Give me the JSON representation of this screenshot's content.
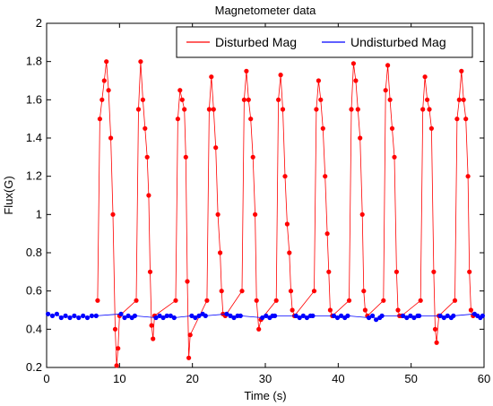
{
  "chart_data": {
    "type": "line",
    "title": "Magnetometer data",
    "xlabel": "Time (s)",
    "ylabel": "Flux(G)",
    "xlim": [
      0,
      60
    ],
    "ylim": [
      0.2,
      2
    ],
    "xticks": [
      0,
      10,
      20,
      30,
      40,
      50,
      60
    ],
    "yticks": [
      0.2,
      0.4,
      0.6,
      0.8,
      1,
      1.2,
      1.4,
      1.6,
      1.8,
      2
    ],
    "grid": false,
    "legend": {
      "placement": "top-right",
      "orientation": "horizontal"
    },
    "series": [
      {
        "name": "Disturbed Mag",
        "color": "#ff0000",
        "style": "line+dots",
        "x": [
          7.0,
          7.3,
          7.6,
          7.9,
          8.2,
          8.5,
          8.8,
          9.1,
          9.4,
          9.6,
          9.8,
          10.0,
          12.3,
          12.6,
          12.9,
          13.2,
          13.5,
          13.8,
          14.0,
          14.2,
          14.4,
          14.6,
          14.8,
          17.7,
          18.0,
          18.3,
          18.6,
          18.9,
          19.1,
          19.3,
          19.5,
          19.7,
          22.0,
          22.3,
          22.6,
          22.9,
          23.2,
          23.5,
          23.8,
          24.0,
          24.2,
          24.5,
          26.8,
          27.1,
          27.4,
          27.7,
          28.0,
          28.3,
          28.6,
          28.8,
          29.1,
          29.4,
          31.5,
          31.8,
          32.1,
          32.4,
          32.7,
          33.0,
          33.3,
          33.5,
          33.7,
          34.0,
          36.7,
          37.0,
          37.3,
          37.6,
          37.9,
          38.2,
          38.5,
          38.7,
          38.9,
          39.2,
          41.5,
          41.8,
          42.1,
          42.4,
          42.7,
          43.0,
          43.3,
          43.5,
          43.7,
          44.0,
          46.2,
          46.5,
          46.8,
          47.1,
          47.4,
          47.7,
          48.0,
          48.2,
          48.4,
          48.7,
          51.3,
          51.6,
          51.9,
          52.2,
          52.5,
          52.8,
          53.1,
          53.3,
          53.5,
          53.8,
          56.0,
          56.3,
          56.6,
          56.9,
          57.2,
          57.5,
          57.8,
          58.0,
          58.2,
          58.5
        ],
        "y": [
          0.55,
          1.5,
          1.6,
          1.7,
          1.8,
          1.65,
          1.4,
          1.0,
          0.4,
          0.21,
          0.3,
          0.47,
          0.55,
          1.55,
          1.8,
          1.6,
          1.45,
          1.3,
          1.1,
          0.7,
          0.42,
          0.35,
          0.47,
          0.55,
          1.5,
          1.65,
          1.6,
          1.55,
          1.3,
          0.65,
          0.25,
          0.37,
          0.55,
          1.55,
          1.72,
          1.55,
          1.35,
          1.0,
          0.8,
          0.6,
          0.48,
          0.47,
          0.6,
          1.6,
          1.75,
          1.6,
          1.5,
          1.3,
          1.0,
          0.55,
          0.4,
          0.45,
          0.55,
          1.6,
          1.73,
          1.55,
          1.2,
          0.95,
          0.8,
          0.6,
          0.5,
          0.47,
          0.6,
          1.55,
          1.7,
          1.6,
          1.45,
          1.2,
          0.9,
          0.7,
          0.5,
          0.47,
          0.55,
          1.55,
          1.79,
          1.7,
          1.55,
          1.4,
          1.0,
          0.6,
          0.5,
          0.47,
          0.55,
          1.65,
          1.78,
          1.6,
          1.45,
          1.3,
          0.7,
          0.5,
          0.47,
          0.47,
          0.55,
          1.55,
          1.72,
          1.6,
          1.55,
          1.45,
          0.7,
          0.4,
          0.33,
          0.47,
          0.55,
          1.5,
          1.6,
          1.75,
          1.6,
          1.5,
          1.2,
          0.7,
          0.5,
          0.47
        ]
      },
      {
        "name": "Undisturbed Mag",
        "color": "#0000ff",
        "style": "line+dots",
        "x": [
          0.2,
          0.8,
          1.4,
          2.0,
          2.6,
          3.2,
          3.8,
          4.4,
          5.0,
          5.6,
          6.2,
          6.8,
          10.2,
          10.7,
          11.2,
          11.7,
          12.1,
          15.0,
          15.5,
          16.0,
          16.5,
          17.0,
          17.5,
          19.9,
          20.4,
          20.9,
          21.4,
          21.8,
          24.7,
          25.2,
          25.7,
          26.2,
          26.6,
          29.6,
          30.1,
          30.6,
          31.0,
          31.3,
          34.2,
          34.7,
          35.2,
          35.7,
          36.2,
          36.5,
          39.4,
          39.9,
          40.4,
          40.9,
          41.3,
          44.2,
          44.7,
          45.2,
          45.7,
          46.0,
          48.9,
          49.4,
          49.9,
          50.4,
          50.9,
          51.1,
          54.0,
          54.5,
          55.0,
          55.5,
          55.8,
          58.7,
          59.1,
          59.5,
          59.8
        ],
        "y": [
          0.48,
          0.47,
          0.48,
          0.46,
          0.47,
          0.46,
          0.47,
          0.46,
          0.47,
          0.46,
          0.47,
          0.47,
          0.48,
          0.46,
          0.47,
          0.46,
          0.47,
          0.46,
          0.47,
          0.46,
          0.47,
          0.47,
          0.46,
          0.47,
          0.46,
          0.47,
          0.48,
          0.47,
          0.48,
          0.47,
          0.46,
          0.47,
          0.47,
          0.46,
          0.47,
          0.46,
          0.47,
          0.47,
          0.47,
          0.46,
          0.47,
          0.46,
          0.47,
          0.47,
          0.47,
          0.46,
          0.47,
          0.46,
          0.47,
          0.46,
          0.47,
          0.45,
          0.46,
          0.47,
          0.47,
          0.46,
          0.47,
          0.46,
          0.47,
          0.47,
          0.47,
          0.46,
          0.47,
          0.46,
          0.47,
          0.48,
          0.47,
          0.46,
          0.47
        ]
      }
    ]
  }
}
